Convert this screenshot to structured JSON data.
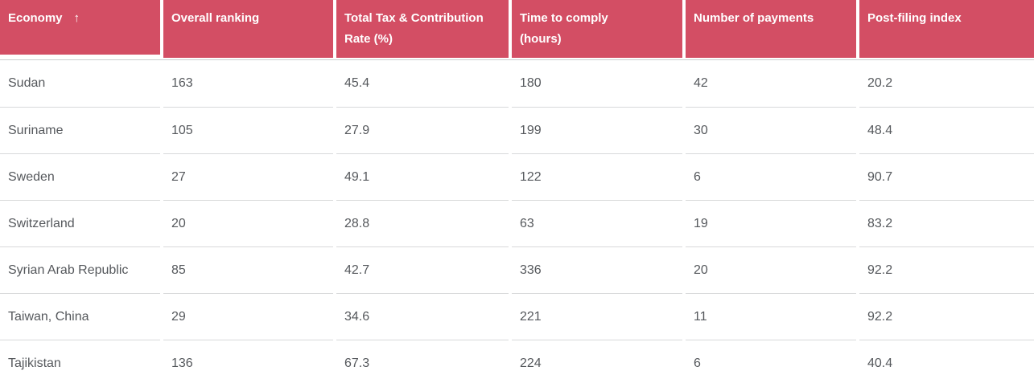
{
  "table": {
    "columns": [
      {
        "line1": "Economy",
        "sorted": true,
        "sort_icon": "↑"
      },
      {
        "line1": "Overall ranking"
      },
      {
        "line1": "Total Tax & Contribution",
        "line2": "Rate (%)"
      },
      {
        "line1": "Time to comply",
        "line2": "(hours)"
      },
      {
        "line1": "Number of payments"
      },
      {
        "line1": "Post-filing index"
      }
    ],
    "rows": [
      [
        "Sudan",
        "163",
        "45.4",
        "180",
        "42",
        "20.2"
      ],
      [
        "Suriname",
        "105",
        "27.9",
        "199",
        "30",
        "48.4"
      ],
      [
        "Sweden",
        "27",
        "49.1",
        "122",
        "6",
        "90.7"
      ],
      [
        "Switzerland",
        "20",
        "28.8",
        "63",
        "19",
        "83.2"
      ],
      [
        "Syrian Arab Republic",
        "85",
        "42.7",
        "336",
        "20",
        "92.2"
      ],
      [
        "Taiwan, China",
        "29",
        "34.6",
        "221",
        "11",
        "92.2"
      ],
      [
        "Tajikistan",
        "136",
        "67.3",
        "224",
        "6",
        "40.4"
      ]
    ]
  },
  "colors": {
    "header_bg": "#d34e64",
    "header_text": "#ffffff",
    "body_text": "#55585c",
    "row_divider": "#d8d9da",
    "header_divider": "#cbccce"
  }
}
